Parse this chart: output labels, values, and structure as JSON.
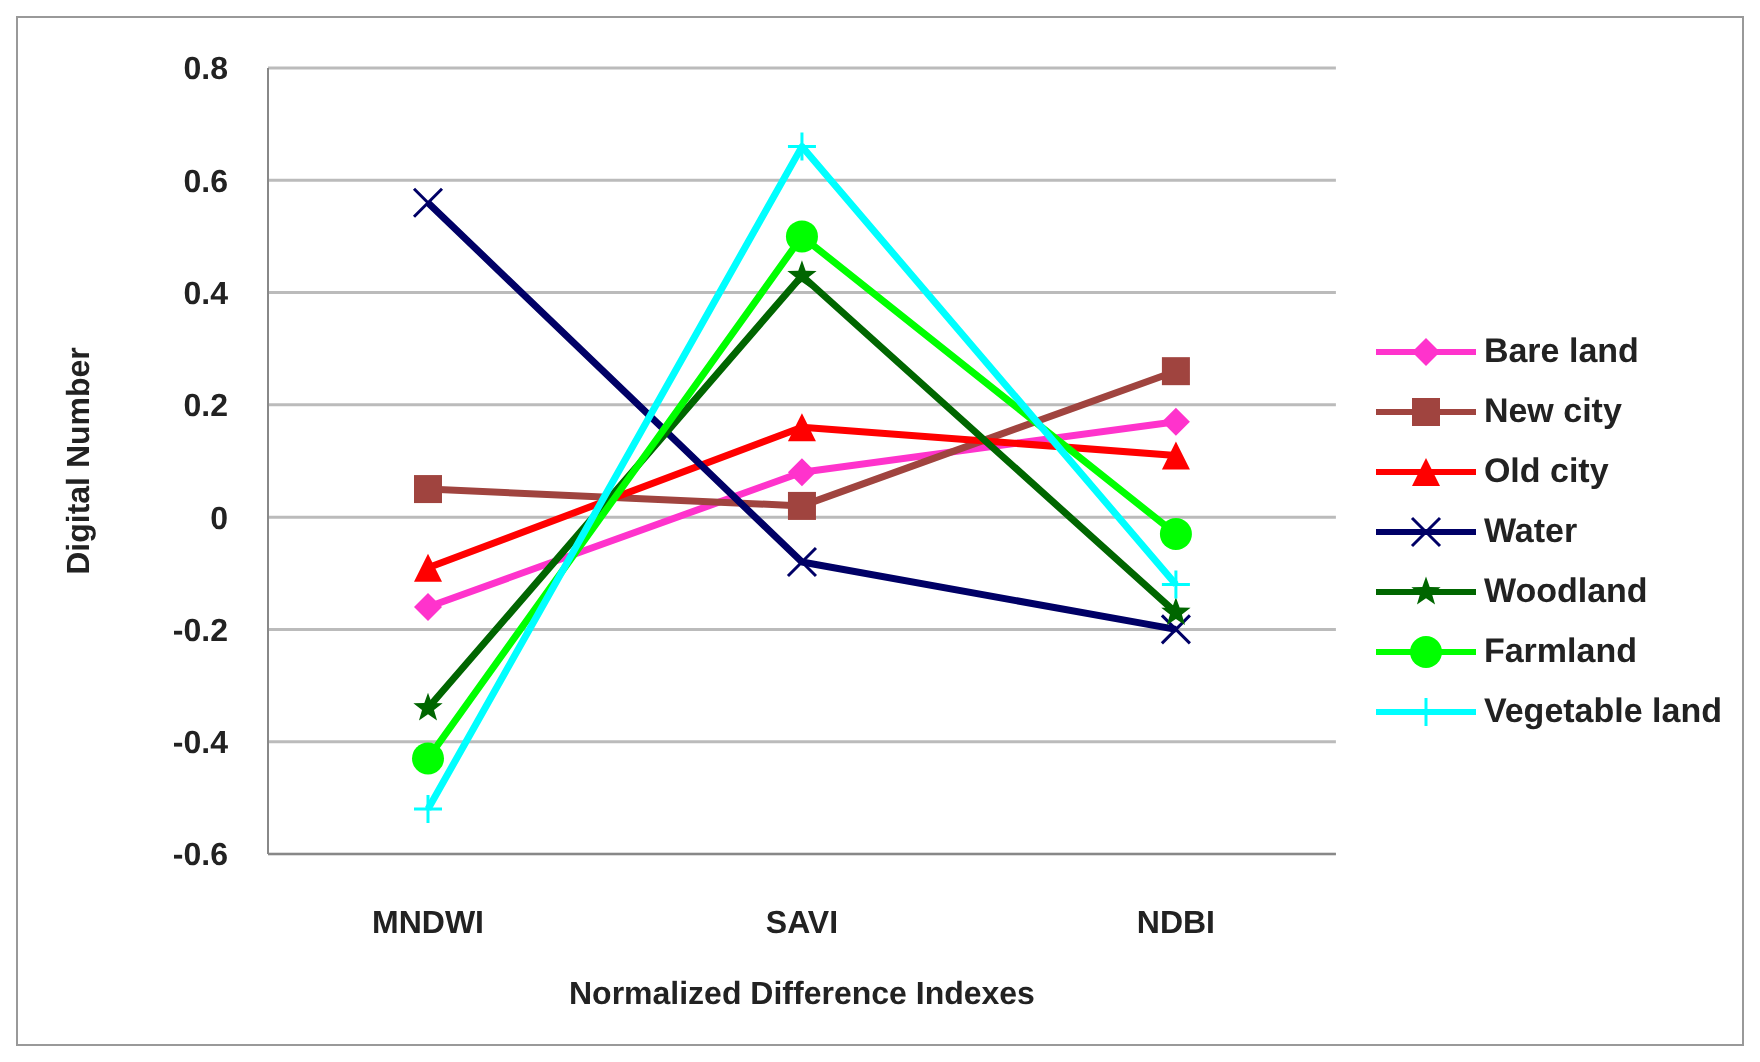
{
  "chart_data": {
    "type": "line",
    "xlabel": "Normalized Difference Indexes",
    "ylabel": "Digital Number",
    "categories": [
      "MNDWI",
      "SAVI",
      "NDBI"
    ],
    "series": [
      {
        "name": "Bare land",
        "color": "#ff33cc",
        "marker": "diamond",
        "values": [
          -0.16,
          0.08,
          0.17
        ]
      },
      {
        "name": "New city",
        "color": "#a0443f",
        "marker": "square",
        "values": [
          0.05,
          0.02,
          0.26
        ]
      },
      {
        "name": "Old city",
        "color": "#ff0000",
        "marker": "triangle",
        "values": [
          -0.09,
          0.16,
          0.11
        ]
      },
      {
        "name": "Water",
        "color": "#000066",
        "marker": "cross",
        "values": [
          0.56,
          -0.08,
          -0.2
        ]
      },
      {
        "name": "Woodland",
        "color": "#006600",
        "marker": "star",
        "values": [
          -0.34,
          0.43,
          -0.17
        ]
      },
      {
        "name": "Farmland",
        "color": "#00ff00",
        "marker": "circle",
        "values": [
          -0.43,
          0.5,
          -0.03
        ]
      },
      {
        "name": "Vegetable land",
        "color": "#00ffff",
        "marker": "plus",
        "values": [
          -0.52,
          0.66,
          -0.12
        ]
      }
    ],
    "ylim": [
      -0.6,
      0.8
    ],
    "yticks": [
      -0.6,
      -0.4,
      -0.2,
      0,
      0.2,
      0.4,
      0.6,
      0.8
    ],
    "grid": "y",
    "legend": "right",
    "line_style": "solid"
  }
}
